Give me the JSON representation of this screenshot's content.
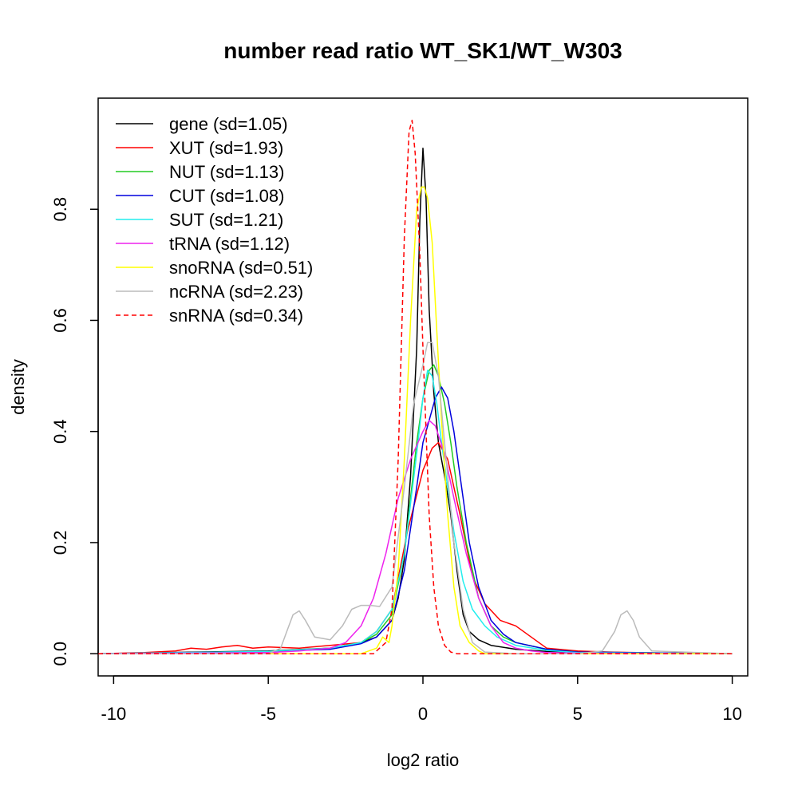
{
  "chart_data": {
    "type": "line",
    "title": "number read ratio WT_SK1/WT_W303",
    "xlabel": "log2 ratio",
    "ylabel": "density",
    "xlim": [
      -10.5,
      10.5
    ],
    "ylim": [
      -0.04,
      1.0
    ],
    "xticks": [
      -10,
      -5,
      0,
      5,
      10
    ],
    "xtick_labels": [
      "-10",
      "-5",
      "0",
      "5",
      "10"
    ],
    "yticks": [
      0.0,
      0.2,
      0.4,
      0.6,
      0.8
    ],
    "ytick_labels": [
      "0.0",
      "0.2",
      "0.4",
      "0.6",
      "0.8"
    ],
    "grid": false,
    "legend_position": "top-left",
    "series": [
      {
        "name": "gene (sd=1.05)",
        "color": "#000000",
        "dash": false,
        "x": [
          -10.5,
          -5,
          -3,
          -2,
          -1.5,
          -1,
          -0.8,
          -0.6,
          -0.4,
          -0.2,
          -0.1,
          0,
          0.1,
          0.2,
          0.35,
          0.5,
          0.7,
          0.9,
          1.1,
          1.3,
          1.5,
          1.8,
          2.2,
          3,
          4,
          6,
          10
        ],
        "y": [
          0,
          0.005,
          0.01,
          0.02,
          0.03,
          0.06,
          0.1,
          0.17,
          0.32,
          0.55,
          0.78,
          0.91,
          0.82,
          0.62,
          0.47,
          0.38,
          0.32,
          0.25,
          0.15,
          0.07,
          0.04,
          0.025,
          0.015,
          0.008,
          0.004,
          0.002,
          0
        ]
      },
      {
        "name": "XUT (sd=1.93)",
        "color": "#ff0000",
        "dash": false,
        "x": [
          -10.5,
          -9,
          -8,
          -7.5,
          -7,
          -6.5,
          -6,
          -5.5,
          -5,
          -4,
          -3,
          -2,
          -1.5,
          -1,
          -0.5,
          0,
          0.3,
          0.5,
          0.8,
          1.2,
          1.6,
          2,
          2.5,
          3,
          3.5,
          4,
          5,
          6,
          8,
          10
        ],
        "y": [
          0,
          0.002,
          0.005,
          0.01,
          0.008,
          0.012,
          0.015,
          0.01,
          0.012,
          0.01,
          0.015,
          0.02,
          0.04,
          0.08,
          0.22,
          0.33,
          0.37,
          0.38,
          0.35,
          0.25,
          0.14,
          0.09,
          0.06,
          0.05,
          0.03,
          0.01,
          0.005,
          0.003,
          0.001,
          0
        ]
      },
      {
        "name": "NUT (sd=1.13)",
        "color": "#22cc22",
        "dash": false,
        "x": [
          -10.5,
          -5,
          -3,
          -2,
          -1.5,
          -1,
          -0.6,
          -0.2,
          0,
          0.2,
          0.35,
          0.5,
          0.7,
          0.9,
          1.1,
          1.4,
          1.8,
          2.2,
          2.6,
          3,
          4,
          5,
          10
        ],
        "y": [
          0,
          0.004,
          0.01,
          0.02,
          0.035,
          0.07,
          0.18,
          0.38,
          0.46,
          0.51,
          0.52,
          0.5,
          0.45,
          0.38,
          0.3,
          0.2,
          0.1,
          0.05,
          0.03,
          0.02,
          0.008,
          0.003,
          0
        ]
      },
      {
        "name": "CUT (sd=1.08)",
        "color": "#0000dd",
        "dash": false,
        "x": [
          -10.5,
          -5,
          -3,
          -2,
          -1.5,
          -1,
          -0.6,
          -0.2,
          0,
          0.2,
          0.4,
          0.6,
          0.8,
          1,
          1.2,
          1.5,
          1.8,
          2.2,
          2.6,
          3,
          4,
          5,
          10
        ],
        "y": [
          0,
          0.004,
          0.008,
          0.018,
          0.03,
          0.06,
          0.15,
          0.3,
          0.38,
          0.42,
          0.46,
          0.48,
          0.46,
          0.4,
          0.32,
          0.2,
          0.12,
          0.06,
          0.035,
          0.02,
          0.008,
          0.003,
          0
        ]
      },
      {
        "name": "SUT (sd=1.21)",
        "color": "#22eeee",
        "dash": false,
        "x": [
          -10.5,
          -5,
          -3,
          -2,
          -1.5,
          -1,
          -0.6,
          -0.2,
          0,
          0.15,
          0.3,
          0.45,
          0.6,
          0.8,
          1,
          1.3,
          1.6,
          2,
          2.4,
          3,
          4,
          5,
          10
        ],
        "y": [
          0,
          0.004,
          0.01,
          0.02,
          0.04,
          0.08,
          0.18,
          0.36,
          0.46,
          0.51,
          0.5,
          0.45,
          0.38,
          0.3,
          0.22,
          0.13,
          0.08,
          0.05,
          0.03,
          0.015,
          0.006,
          0.002,
          0
        ]
      },
      {
        "name": "tRNA (sd=1.12)",
        "color": "#ee22ee",
        "dash": false,
        "x": [
          -10.5,
          -5,
          -4,
          -3,
          -2.5,
          -2,
          -1.6,
          -1.2,
          -0.8,
          -0.4,
          0,
          0.2,
          0.4,
          0.7,
          1,
          1.4,
          1.8,
          2.2,
          2.6,
          3,
          3.5,
          4,
          5,
          10
        ],
        "y": [
          0,
          0.002,
          0.005,
          0.01,
          0.02,
          0.05,
          0.1,
          0.18,
          0.28,
          0.35,
          0.4,
          0.42,
          0.41,
          0.36,
          0.28,
          0.18,
          0.1,
          0.05,
          0.02,
          0.01,
          0.005,
          0.002,
          0.001,
          0
        ]
      },
      {
        "name": "snoRNA (sd=0.51)",
        "color": "#ffff00",
        "dash": false,
        "x": [
          -10.5,
          -2,
          -1.5,
          -1.3,
          -1.1,
          -1,
          -0.8,
          -0.6,
          -0.4,
          -0.2,
          -0.05,
          0.05,
          0.15,
          0.3,
          0.45,
          0.6,
          0.8,
          1,
          1.2,
          1.5,
          1.8,
          2,
          10
        ],
        "y": [
          0,
          0,
          0.01,
          0.03,
          0.02,
          0.05,
          0.15,
          0.35,
          0.6,
          0.8,
          0.84,
          0.84,
          0.82,
          0.74,
          0.58,
          0.42,
          0.25,
          0.12,
          0.05,
          0.02,
          0.005,
          0,
          0
        ]
      },
      {
        "name": "ncRNA (sd=2.23)",
        "color": "#bbbbbb",
        "dash": false,
        "x": [
          -10.5,
          -5,
          -4.6,
          -4.4,
          -4.2,
          -4,
          -3.8,
          -3.5,
          -3,
          -2.6,
          -2.3,
          -2,
          -1.7,
          -1.4,
          -1,
          -0.6,
          -0.3,
          0,
          0.15,
          0.3,
          0.5,
          0.7,
          1,
          1.3,
          1.6,
          2,
          3,
          5,
          5.8,
          6.2,
          6.4,
          6.6,
          6.8,
          7,
          7.4,
          10
        ],
        "y": [
          0,
          0,
          0.01,
          0.04,
          0.07,
          0.077,
          0.06,
          0.03,
          0.025,
          0.05,
          0.08,
          0.087,
          0.087,
          0.085,
          0.12,
          0.3,
          0.45,
          0.52,
          0.56,
          0.56,
          0.5,
          0.38,
          0.2,
          0.08,
          0.02,
          0.003,
          0,
          0,
          0.005,
          0.04,
          0.07,
          0.077,
          0.06,
          0.03,
          0.005,
          0
        ]
      },
      {
        "name": "snRNA (sd=0.34)",
        "color": "#ff0000",
        "dash": true,
        "x": [
          -10.5,
          -1.6,
          -1.2,
          -1.0,
          -0.8,
          -0.6,
          -0.45,
          -0.35,
          -0.25,
          -0.1,
          0,
          0.1,
          0.2,
          0.35,
          0.5,
          0.7,
          0.9,
          1.1,
          10
        ],
        "y": [
          0,
          0,
          0.02,
          0.08,
          0.35,
          0.75,
          0.94,
          0.96,
          0.9,
          0.72,
          0.55,
          0.4,
          0.25,
          0.12,
          0.05,
          0.015,
          0.003,
          0,
          0
        ]
      }
    ]
  }
}
